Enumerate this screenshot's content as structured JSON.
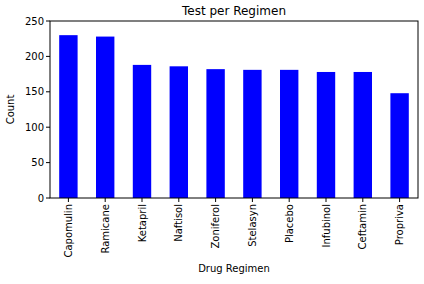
{
  "chart_data": {
    "type": "bar",
    "title": "Test per Regimen",
    "x_label": "Drug Regimen",
    "y_label": "Count",
    "categories": [
      "Capomulin",
      "Ramicane",
      "Ketapril",
      "Naftisol",
      "Zoniferol",
      "Stelasyn",
      "Placebo",
      "Infubinol",
      "Ceftamin",
      "Propriva"
    ],
    "values": [
      230,
      228,
      188,
      186,
      182,
      181,
      181,
      178,
      178,
      148
    ],
    "color": "#0000ff",
    "ylim": [
      0,
      250
    ],
    "yticks": [
      0,
      50,
      100,
      150,
      200,
      250
    ],
    "grid": false
  }
}
